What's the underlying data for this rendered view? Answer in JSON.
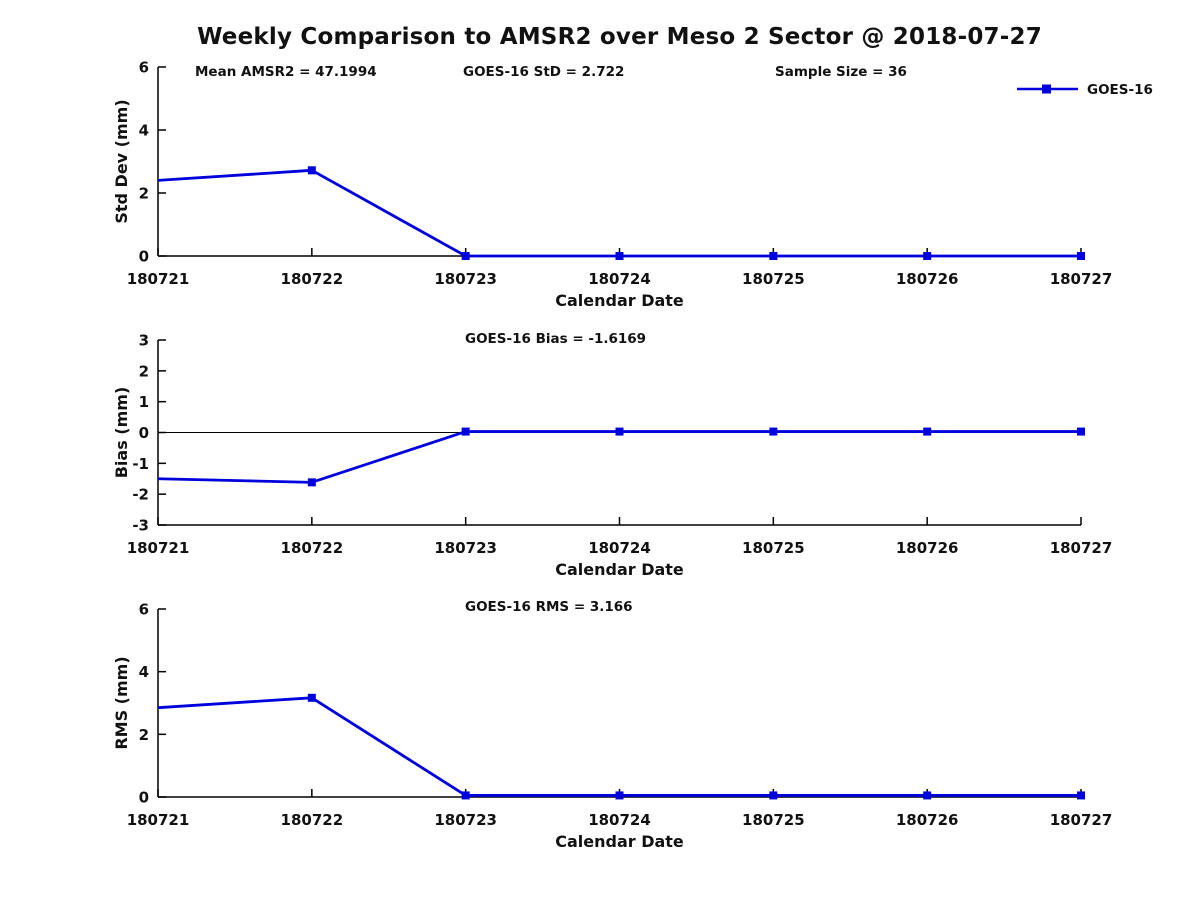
{
  "title": "Weekly Comparison to AMSR2 over Meso 2 Sector @ 2018-07-27",
  "colors": {
    "series": "#0000dd",
    "axis": "#000000",
    "text": "#111111"
  },
  "legend": {
    "label": "GOES-16",
    "position": "top-right-of-first-panel"
  },
  "chart_data": [
    {
      "type": "line",
      "name": "std-dev-panel",
      "annotations": [
        "Mean AMSR2 = 47.1994",
        "GOES-16 StD = 2.722",
        "Sample Size = 36"
      ],
      "categories": [
        "180721",
        "180722",
        "180723",
        "180724",
        "180725",
        "180726",
        "180727"
      ],
      "series": [
        {
          "name": "GOES-16",
          "values": [
            2.4,
            2.72,
            0.0,
            0.0,
            0.0,
            0.0,
            0.0
          ]
        }
      ],
      "xlabel": "Calendar Date",
      "ylabel": "Std Dev (mm)",
      "ylim": [
        0,
        6
      ],
      "yticks": [
        "0",
        "2",
        "4",
        "6"
      ],
      "ytick_values": [
        0,
        2,
        4,
        6
      ],
      "zero_line": false,
      "show_legend": true,
      "grid": false,
      "marker": "square"
    },
    {
      "type": "line",
      "name": "bias-panel",
      "annotations": [
        "GOES-16 Bias  = -1.6169"
      ],
      "categories": [
        "180721",
        "180722",
        "180723",
        "180724",
        "180725",
        "180726",
        "180727"
      ],
      "series": [
        {
          "name": "GOES-16",
          "values": [
            -1.5,
            -1.6169,
            0.03,
            0.03,
            0.03,
            0.03,
            0.03
          ]
        }
      ],
      "xlabel": "Calendar Date",
      "ylabel": "Bias (mm)",
      "ylim": [
        -3,
        3
      ],
      "yticks": [
        "-3",
        "-2",
        "-1",
        "0",
        "1",
        "2",
        "3"
      ],
      "ytick_values": [
        -3,
        -2,
        -1,
        0,
        1,
        2,
        3
      ],
      "zero_line": true,
      "show_legend": false,
      "grid": false,
      "marker": "square"
    },
    {
      "type": "line",
      "name": "rms-panel",
      "annotations": [
        "GOES-16 RMS = 3.166"
      ],
      "categories": [
        "180721",
        "180722",
        "180723",
        "180724",
        "180725",
        "180726",
        "180727"
      ],
      "series": [
        {
          "name": "GOES-16",
          "values": [
            2.85,
            3.166,
            0.05,
            0.05,
            0.05,
            0.05,
            0.05
          ]
        }
      ],
      "xlabel": "Calendar Date",
      "ylabel": "RMS (mm)",
      "ylim": [
        0,
        6
      ],
      "yticks": [
        "0",
        "2",
        "4",
        "6"
      ],
      "ytick_values": [
        0,
        2,
        4,
        6
      ],
      "zero_line": false,
      "show_legend": false,
      "grid": false,
      "marker": "square"
    }
  ]
}
